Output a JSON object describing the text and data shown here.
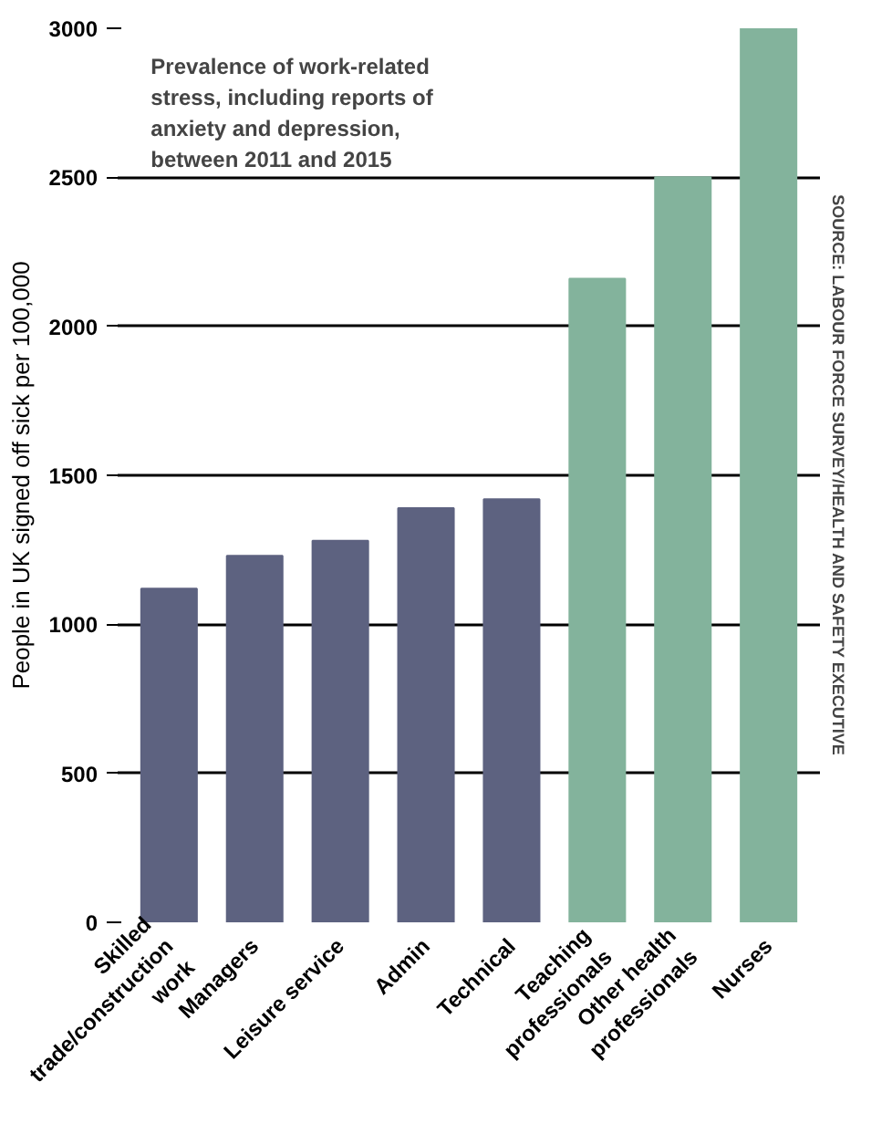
{
  "chart_data": {
    "type": "bar",
    "title": "Prevalence of work-related stress, including reports of anxiety and depression, between 2011 and 2015",
    "ylabel": "People in UK signed off sick per 100,000",
    "categories": [
      "Skilled trade/construction work",
      "Managers",
      "Leisure service",
      "Admin",
      "Technical",
      "Teaching professionals",
      "Other health professionals",
      "Nurses"
    ],
    "values": [
      1120,
      1230,
      1280,
      1390,
      1420,
      2160,
      2500,
      3000
    ],
    "colors": [
      "#5d6280",
      "#5d6280",
      "#5d6280",
      "#5d6280",
      "#5d6280",
      "#83b39c",
      "#83b39c",
      "#83b39c"
    ],
    "ylim": [
      0,
      3000
    ],
    "yticks": [
      0,
      500,
      1000,
      1500,
      2000,
      2500,
      3000
    ],
    "grid": "y",
    "annotations": [
      "SOURCE: LABOUR FORCE SURVEY/HEALTH AND SAFETY EXECUTIVE"
    ]
  }
}
